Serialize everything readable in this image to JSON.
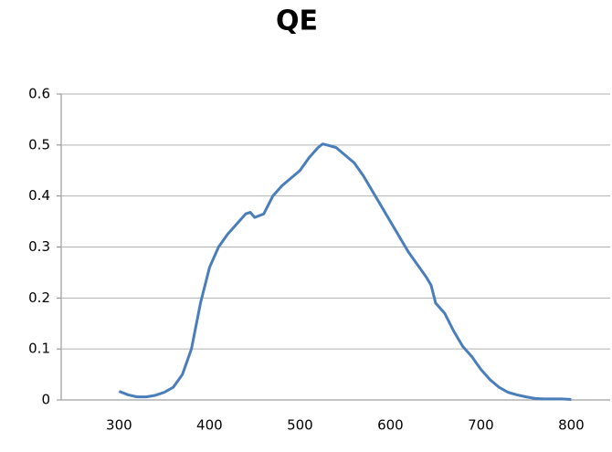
{
  "chart_data": {
    "type": "line",
    "title": "QE",
    "x": [
      300,
      310,
      320,
      330,
      340,
      350,
      360,
      370,
      380,
      390,
      400,
      410,
      420,
      430,
      440,
      445,
      450,
      460,
      470,
      480,
      490,
      500,
      510,
      520,
      525,
      530,
      540,
      550,
      560,
      570,
      580,
      590,
      600,
      610,
      620,
      630,
      640,
      645,
      650,
      660,
      670,
      680,
      690,
      700,
      710,
      720,
      730,
      740,
      750,
      760,
      770,
      780,
      790,
      800
    ],
    "series": [
      {
        "name": "QE",
        "color": "#4a7ebb",
        "values": [
          0.017,
          0.01,
          0.006,
          0.006,
          0.009,
          0.015,
          0.025,
          0.05,
          0.1,
          0.19,
          0.26,
          0.3,
          0.325,
          0.345,
          0.365,
          0.368,
          0.358,
          0.365,
          0.4,
          0.42,
          0.435,
          0.45,
          0.475,
          0.495,
          0.502,
          0.5,
          0.495,
          0.48,
          0.465,
          0.44,
          0.41,
          0.38,
          0.35,
          0.32,
          0.29,
          0.265,
          0.24,
          0.225,
          0.19,
          0.17,
          0.135,
          0.105,
          0.085,
          0.06,
          0.04,
          0.025,
          0.015,
          0.01,
          0.006,
          0.003,
          0.002,
          0.002,
          0.002,
          0.001
        ]
      }
    ],
    "xlim": [
      236,
      843
    ],
    "xticks": [
      300,
      400,
      500,
      600,
      700,
      800
    ],
    "ylim": [
      0,
      0.6
    ],
    "yticks": [
      0,
      0.1,
      0.2,
      0.3,
      0.4,
      0.5,
      0.6
    ],
    "grid": true
  }
}
